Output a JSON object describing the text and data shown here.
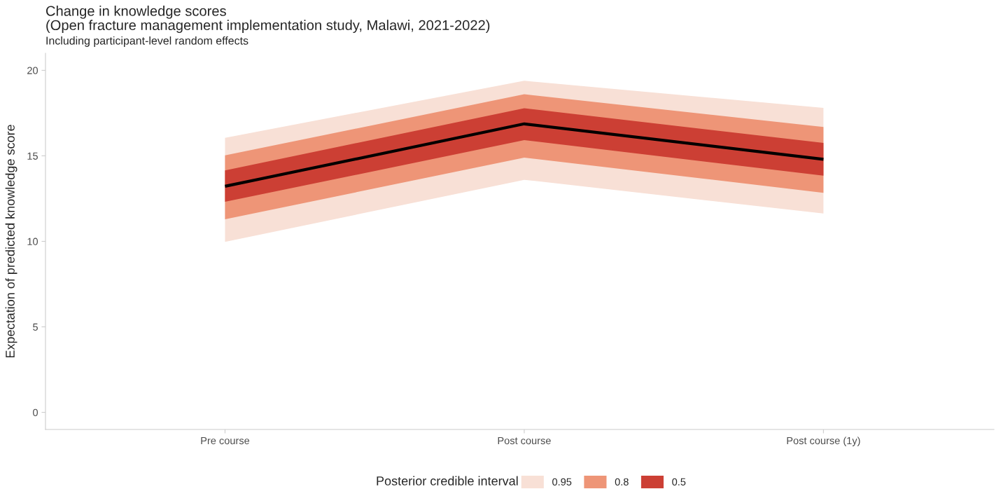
{
  "chart_data": {
    "type": "line",
    "title": "Change in knowledge scores\n(Open fracture management implementation study, Malawi, 2021-2022)",
    "subtitle": "Including participant-level random effects",
    "ylabel": "Expectation of predicted knowledge score",
    "legend_title": "Posterior credible interval",
    "categories": [
      "Pre course",
      "Post course",
      "Post course (1y)"
    ],
    "series": [
      {
        "name": "0.95",
        "color": "#f8e0d6",
        "values": [
          null,
          null,
          null
        ],
        "lower": [
          9.97,
          13.6,
          11.63
        ],
        "upper": [
          16.05,
          19.39,
          17.8
        ]
      },
      {
        "name": "0.8",
        "color": "#ee9577",
        "values": [
          null,
          null,
          null
        ],
        "lower": [
          11.29,
          14.9,
          12.84
        ],
        "upper": [
          15.03,
          18.6,
          16.69
        ]
      },
      {
        "name": "0.5",
        "color": "#cc3f34",
        "values": [
          null,
          null,
          null
        ],
        "lower": [
          12.31,
          15.92,
          13.84
        ],
        "upper": [
          14.15,
          17.78,
          15.76
        ]
      },
      {
        "color": "#000000",
        "values": [
          13.22,
          16.87,
          14.8
        ]
      }
    ],
    "ylim": [
      -1,
      21
    ],
    "yticks": [
      0,
      5,
      10,
      15,
      20
    ],
    "grid": false,
    "legend": "bottom"
  }
}
